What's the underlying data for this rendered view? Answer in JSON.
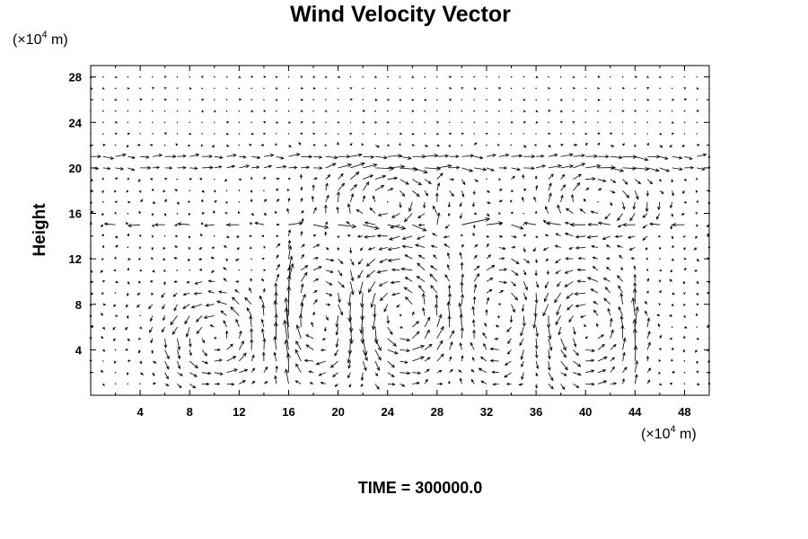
{
  "chart_data": {
    "type": "vector-field",
    "title": "Wind Velocity Vector",
    "ylabel": "Height",
    "x_unit": {
      "prefix": "(×10",
      "exp": "4",
      "suffix": " m)"
    },
    "y_unit": {
      "prefix": "(×10",
      "exp": "4",
      "suffix": " m)"
    },
    "xlim": [
      0,
      50
    ],
    "ylim": [
      0,
      29
    ],
    "x_ticks": [
      4,
      8,
      12,
      16,
      20,
      24,
      28,
      32,
      36,
      40,
      44,
      48
    ],
    "y_ticks": [
      4,
      8,
      12,
      16,
      20,
      24,
      28
    ],
    "grid_dx": 2,
    "grid_dy": 1,
    "vector_scale": 1.0,
    "vectors": [
      {
        "x": 2,
        "y": 15,
        "u": -1.1,
        "v": 0.1
      },
      {
        "x": 4,
        "y": 15,
        "u": -1.2,
        "v": -0.1
      },
      {
        "x": 6,
        "y": 15,
        "u": -1.0,
        "v": 0.0
      },
      {
        "x": 8,
        "y": 15,
        "u": -1.2,
        "v": 0.1
      },
      {
        "x": 10,
        "y": 15,
        "u": -1.0,
        "v": -0.1
      },
      {
        "x": 12,
        "y": 15,
        "u": -1.2,
        "v": 0.0
      },
      {
        "x": 14,
        "y": 15,
        "u": -0.9,
        "v": 0.2
      },
      {
        "x": 16,
        "y": 15,
        "u": 1.4,
        "v": 0.2
      },
      {
        "x": 18,
        "y": 15,
        "u": 1.5,
        "v": -0.3
      },
      {
        "x": 20,
        "y": 15,
        "u": 1.8,
        "v": -0.2
      },
      {
        "x": 22,
        "y": 15,
        "u": 1.6,
        "v": -0.4
      },
      {
        "x": 24,
        "y": 15,
        "u": 1.8,
        "v": -0.4
      },
      {
        "x": 26,
        "y": 15,
        "u": 1.4,
        "v": -0.6
      },
      {
        "x": 28,
        "y": 15,
        "u": 0.2,
        "v": 1.2
      },
      {
        "x": 30,
        "y": 15,
        "u": 2.8,
        "v": 0.6
      },
      {
        "x": 32,
        "y": 15,
        "u": 1.6,
        "v": 0.2
      },
      {
        "x": 34,
        "y": 15,
        "u": 1.2,
        "v": -0.4
      },
      {
        "x": 36,
        "y": 15,
        "u": -1.2,
        "v": 0.2
      },
      {
        "x": 38,
        "y": 15,
        "u": -1.4,
        "v": 0.2
      },
      {
        "x": 40,
        "y": 15,
        "u": -1.5,
        "v": 0.0
      },
      {
        "x": 42,
        "y": 15,
        "u": -1.2,
        "v": 0.2
      },
      {
        "x": 44,
        "y": 15,
        "u": -1.2,
        "v": 0.0
      },
      {
        "x": 46,
        "y": 15,
        "u": -1.0,
        "v": 0.1
      },
      {
        "x": 48,
        "y": 15,
        "u": -1.2,
        "v": 0.0
      }
    ],
    "pattern": "circulation-cells",
    "background_field": [
      {
        "region": "upper-calm",
        "y_from": 23,
        "y_to": 29,
        "u": 0.2,
        "v": 0.0
      },
      {
        "region": "tropopause",
        "y_from": 20,
        "y_to": 22,
        "u": 0.9,
        "v": 0.0
      },
      {
        "region": "cells",
        "y_from": 0,
        "y_to": 20,
        "u": 0.0,
        "v": 0.0
      }
    ],
    "cells": [
      {
        "cx": 10,
        "cy": 5,
        "rx": 4.0,
        "ry": 4.0,
        "strength": 1.6
      },
      {
        "cx": 19,
        "cy": 7,
        "rx": 3.5,
        "ry": 6.0,
        "strength": -1.4
      },
      {
        "cx": 25,
        "cy": 7,
        "rx": 4.0,
        "ry": 5.0,
        "strength": 1.8
      },
      {
        "cx": 24,
        "cy": 17,
        "rx": 5.0,
        "ry": 3.0,
        "strength": -1.6
      },
      {
        "cx": 33,
        "cy": 7,
        "rx": 3.0,
        "ry": 6.0,
        "strength": -1.2
      },
      {
        "cx": 40,
        "cy": 6,
        "rx": 3.5,
        "ry": 5.0,
        "strength": 1.6
      },
      {
        "cx": 41,
        "cy": 17,
        "rx": 4.5,
        "ry": 3.0,
        "strength": -1.4
      },
      {
        "cx": 16,
        "cy": 6,
        "rx": 1.0,
        "ry": 7.0,
        "strength": 0.0,
        "updraft": 2.2
      },
      {
        "cx": 28,
        "cy": 17,
        "rx": 1.0,
        "ry": 3.0,
        "strength": 0.0,
        "updraft": 1.8
      },
      {
        "cx": 44,
        "cy": 5,
        "rx": 1.0,
        "ry": 5.0,
        "strength": 0.0,
        "updraft": 1.6
      }
    ]
  },
  "footer": {
    "time_text": "TIME = 300000.0"
  },
  "colors": {
    "axis": "#000000",
    "arrow": "#000000",
    "background": "#ffffff"
  }
}
